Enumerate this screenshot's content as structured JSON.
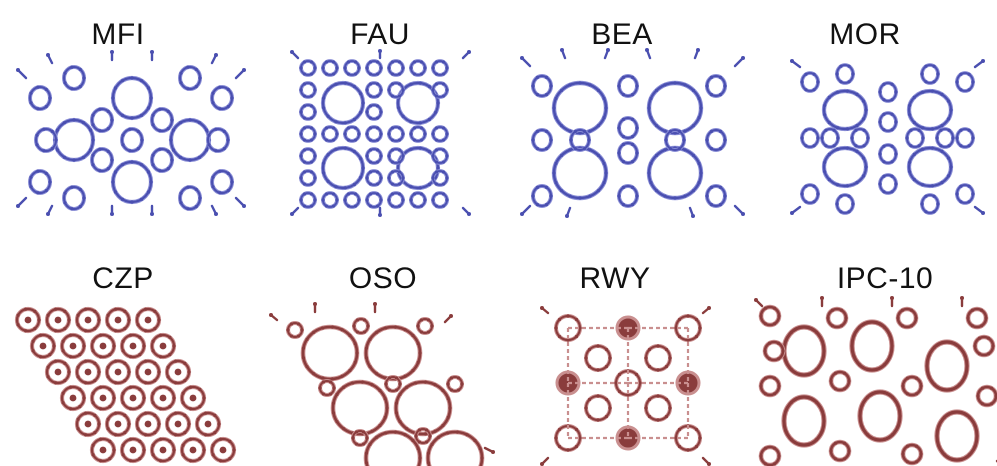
{
  "colors": {
    "blue": "#4a4fb0",
    "blue_light": "#8a8ed6",
    "red": "#8a3c3c",
    "red_light": "#c98f8f"
  },
  "frameworks": [
    {
      "label": "MFI",
      "color_key": "blue",
      "pattern": "mfi"
    },
    {
      "label": "FAU",
      "color_key": "blue",
      "pattern": "fau"
    },
    {
      "label": "BEA",
      "color_key": "blue",
      "pattern": "bea"
    },
    {
      "label": "MOR",
      "color_key": "blue",
      "pattern": "mor"
    },
    {
      "label": "CZP",
      "color_key": "red",
      "pattern": "czp"
    },
    {
      "label": "OSO",
      "color_key": "red",
      "pattern": "oso"
    },
    {
      "label": "RWY",
      "color_key": "red",
      "pattern": "rwy"
    },
    {
      "label": "IPC-10",
      "color_key": "red",
      "pattern": "ipc"
    }
  ]
}
